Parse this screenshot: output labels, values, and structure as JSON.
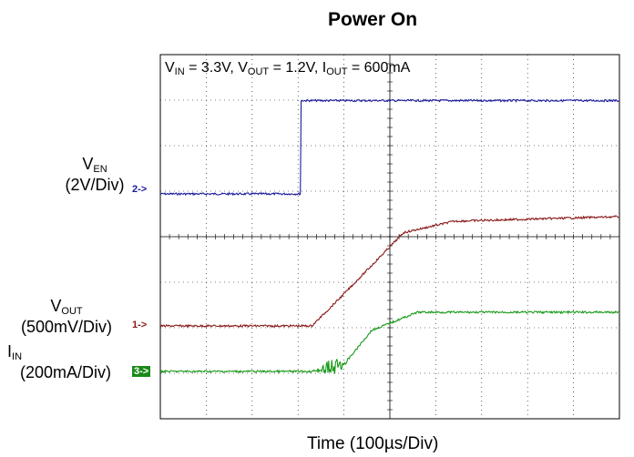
{
  "chart_data": {
    "type": "line",
    "title": "Power On",
    "xlabel": "Time (100µs/Div)",
    "conditions": {
      "vin": {
        "sym": "V",
        "sub": "IN",
        "val": " = 3.3V, "
      },
      "vout": {
        "sym": "V",
        "sub": "OUT",
        "val": " = 1.2V, "
      },
      "iout": {
        "sym": "I",
        "sub": "OUT",
        "val": " = 600mA"
      }
    },
    "grid": {
      "x_divisions": 10,
      "y_divisions": 8,
      "on": true
    },
    "channels": [
      {
        "id": "ch2",
        "sym": "V",
        "sub": "EN",
        "scale": "(2V/Div)",
        "marker": "2->",
        "color": "#1a1a9a"
      },
      {
        "id": "ch1",
        "sym": "V",
        "sub": "OUT",
        "scale": "(500mV/Div)",
        "marker": "1->",
        "color": "#8b1a1a"
      },
      {
        "id": "ch3",
        "sym": "I",
        "sub": "IN",
        "scale": "(200mA/Div)",
        "marker": "3->",
        "color": "#1a9a1a"
      }
    ],
    "series": [
      {
        "id": "ch2",
        "x": [
          0,
          3.05,
          3.05,
          10
        ],
        "y": [
          -0.1,
          -0.1,
          1.95,
          1.95
        ]
      },
      {
        "id": "ch1",
        "x": [
          0,
          3.3,
          3.9,
          5.3,
          6.4,
          10
        ],
        "y": [
          0,
          0,
          0.6,
          2.05,
          2.3,
          2.4
        ]
      },
      {
        "id": "ch3",
        "x": [
          0,
          3.3,
          4.0,
          4.6,
          5.6,
          10
        ],
        "y": [
          0,
          0,
          0.15,
          0.9,
          1.3,
          1.3
        ]
      }
    ]
  }
}
